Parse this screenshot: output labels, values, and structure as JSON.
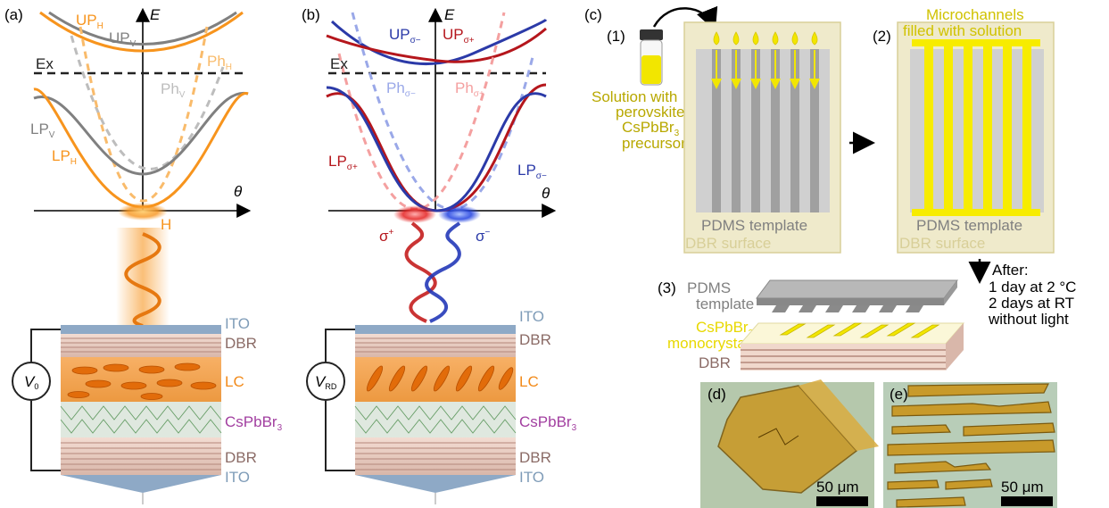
{
  "colors": {
    "orange": "#f7941d",
    "gray": "#808080",
    "red": "#b5161c",
    "blue": "#2b3aa8",
    "ito": "#7f9cb8",
    "dbr": "#8b6b66",
    "lc": "#f28a1a",
    "perov": "#a23fa0",
    "yellow": "#f2e600",
    "olive": "#b8a800",
    "dbr_bg": "#e8e2b8"
  },
  "panel_a": {
    "tag": "(a)",
    "axis_e": "E",
    "axis_theta": "θ",
    "up_h": "UP",
    "up_h_sub": "H",
    "up_v": "UP",
    "up_v_sub": "V",
    "ex": "Ex",
    "ph_h": "Ph",
    "ph_h_sub": "H",
    "ph_v": "Ph",
    "ph_v_sub": "V",
    "lp_v": "LP",
    "lp_v_sub": "V",
    "lp_h": "LP",
    "lp_h_sub": "H",
    "h_label": "H",
    "voltage": "V",
    "voltage_sub": "0",
    "layers": {
      "ito_top": "ITO",
      "dbr_top": "DBR",
      "lc": "LC",
      "perov": "CsPbBr",
      "perov_sub": "3",
      "dbr_bot": "DBR",
      "ito_bot": "ITO"
    }
  },
  "panel_b": {
    "tag": "(b)",
    "axis_e": "E",
    "axis_theta": "θ",
    "up_minus": "UP",
    "up_minus_sub": "σ−",
    "up_plus": "UP",
    "up_plus_sub": "σ+",
    "ex": "Ex",
    "ph_minus": "Ph",
    "ph_minus_sub": "σ−",
    "ph_plus": "Ph",
    "ph_plus_sub": "σ+",
    "lp_plus": "LP",
    "lp_plus_sub": "σ+",
    "lp_minus": "LP",
    "lp_minus_sub": "σ−",
    "sigma_plus": "σ",
    "sigma_plus_sup": "+",
    "sigma_minus": "σ",
    "sigma_minus_sup": "−",
    "voltage": "V",
    "voltage_sub": "RD",
    "layers": {
      "ito_top": "ITO",
      "dbr_top": "DBR",
      "lc": "LC",
      "perov": "CsPbBr",
      "perov_sub": "3",
      "dbr_bot": "DBR",
      "ito_bot": "ITO"
    }
  },
  "panel_c": {
    "tag": "(c)",
    "step1": "(1)",
    "solution_line1": "Solution with",
    "solution_line2": "perovskite",
    "solution_line3": "CsPbBr",
    "solution_line3_sub": "3",
    "solution_line4": "precursor",
    "pdms_template": "PDMS template",
    "dbr_surface": "DBR surface",
    "step2": "(2)",
    "micro_line1": "Microchannels",
    "micro_line2": "filled with solution",
    "pdms_template_2": "PDMS template",
    "dbr_surface_2": "DBR surface",
    "step3": "(3)",
    "pdms": "PDMS",
    "template": "template",
    "csp_line1": "CsPbBr",
    "csp_line1_sub": "3",
    "csp_line2": "monocrystals",
    "dbr": "DBR",
    "after": "After:",
    "after_line1": "1 day at 2 °C",
    "after_line2": "2 days at RT",
    "after_line3": "without light"
  },
  "panel_d": {
    "tag": "(d)",
    "scale": "50 μm"
  },
  "panel_e": {
    "tag": "(e)",
    "scale": "50 μm"
  }
}
